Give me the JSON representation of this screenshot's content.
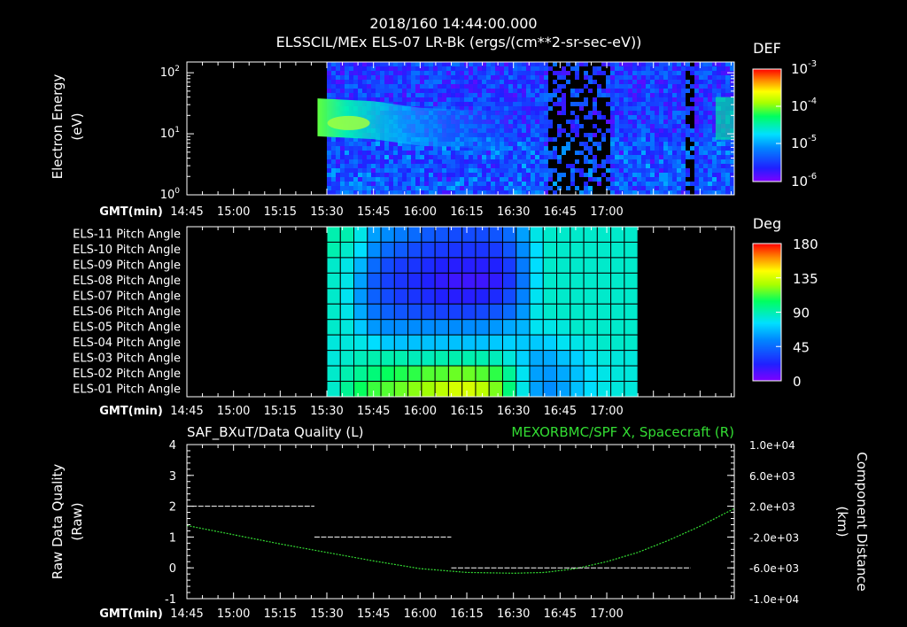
{
  "header": {
    "timestamp": "2018/160 14:44:00.000",
    "title": "ELSSCIL/MEx ELS-07 LR-Bk  (ergs/(cm**2-sr-sec-eV))"
  },
  "time_axis": {
    "label": "GMT(min)",
    "ticks": [
      "14:45",
      "15:00",
      "15:15",
      "15:30",
      "15:45",
      "16:00",
      "16:15",
      "16:30",
      "16:45",
      "17:00"
    ],
    "start_min": 885,
    "end_min": 1061
  },
  "colors": {
    "background": "#000000",
    "axis": "#ffffff",
    "spacecraft_trace": "#33dd33",
    "quality_trace": "#ffffff"
  },
  "chart_data": [
    {
      "type": "heatmap",
      "name": "energy_spectrogram",
      "ylabel": "Electron Energy (eV)",
      "ylabel_lines": [
        "Electron Energy",
        "(eV)"
      ],
      "yscale": "log",
      "ylim": [
        1,
        150
      ],
      "yticks": [
        {
          "base": "10",
          "exp": "0",
          "value": 1
        },
        {
          "base": "10",
          "exp": "1",
          "value": 10
        },
        {
          "base": "10",
          "exp": "2",
          "value": 100
        }
      ],
      "data_start_time": "15:30",
      "colorbar": {
        "title": "DEF",
        "ticks": [
          {
            "base": "10",
            "exp": "-3"
          },
          {
            "base": "10",
            "exp": "-4"
          },
          {
            "base": "10",
            "exp": "-5"
          },
          {
            "base": "10",
            "exp": "-6"
          }
        ]
      }
    },
    {
      "type": "heatmap",
      "name": "pitch_angle",
      "data_start_time": "15:30",
      "data_end_time": "17:10",
      "rows": [
        "ELS-11 Pitch Angle",
        "ELS-10 Pitch Angle",
        "ELS-09 Pitch Angle",
        "ELS-08 Pitch Angle",
        "ELS-07 Pitch Angle",
        "ELS-06 Pitch Angle",
        "ELS-05 Pitch Angle",
        "ELS-04 Pitch Angle",
        "ELS-03 Pitch Angle",
        "ELS-02 Pitch Angle",
        "ELS-01 Pitch Angle"
      ],
      "colorbar": {
        "title": "Deg",
        "range": [
          0,
          180
        ],
        "ticks": [
          "180",
          "135",
          "90",
          "45",
          "0"
        ]
      },
      "columns": 23,
      "values": [
        [
          90,
          90,
          80,
          60,
          55,
          50,
          45,
          40,
          38,
          35,
          35,
          35,
          38,
          45,
          60,
          80,
          85,
          85,
          85,
          85,
          85,
          85,
          85
        ],
        [
          90,
          85,
          75,
          55,
          45,
          40,
          35,
          32,
          30,
          28,
          28,
          28,
          30,
          38,
          55,
          75,
          85,
          85,
          85,
          85,
          85,
          85,
          85
        ],
        [
          85,
          80,
          65,
          45,
          35,
          30,
          28,
          25,
          22,
          20,
          20,
          20,
          22,
          30,
          50,
          75,
          85,
          85,
          85,
          85,
          85,
          85,
          85
        ],
        [
          85,
          80,
          60,
          40,
          32,
          28,
          25,
          22,
          18,
          15,
          15,
          15,
          18,
          28,
          48,
          75,
          85,
          85,
          85,
          85,
          85,
          85,
          85
        ],
        [
          85,
          78,
          58,
          42,
          35,
          30,
          28,
          25,
          22,
          20,
          20,
          22,
          25,
          35,
          52,
          78,
          85,
          85,
          85,
          85,
          85,
          85,
          85
        ],
        [
          85,
          80,
          62,
          48,
          42,
          38,
          36,
          34,
          32,
          32,
          32,
          34,
          38,
          45,
          58,
          80,
          85,
          85,
          85,
          85,
          85,
          85,
          85
        ],
        [
          85,
          82,
          70,
          58,
          55,
          55,
          55,
          55,
          55,
          55,
          55,
          55,
          58,
          62,
          65,
          78,
          80,
          82,
          85,
          85,
          85,
          85,
          85
        ],
        [
          82,
          82,
          80,
          75,
          70,
          68,
          68,
          68,
          68,
          68,
          68,
          68,
          70,
          72,
          70,
          70,
          72,
          78,
          80,
          82,
          85,
          85,
          85
        ],
        [
          82,
          85,
          88,
          90,
          90,
          90,
          88,
          88,
          90,
          90,
          90,
          90,
          88,
          82,
          72,
          62,
          62,
          68,
          72,
          78,
          82,
          82,
          82
        ],
        [
          85,
          90,
          95,
          100,
          105,
          108,
          110,
          115,
          115,
          118,
          118,
          115,
          110,
          95,
          78,
          60,
          58,
          62,
          68,
          75,
          80,
          82,
          82
        ],
        [
          85,
          95,
          105,
          112,
          115,
          118,
          122,
          125,
          130,
          135,
          135,
          130,
          120,
          100,
          80,
          60,
          55,
          60,
          68,
          75,
          80,
          82,
          82
        ]
      ]
    },
    {
      "type": "line",
      "name": "data_quality_and_spacecraft_position",
      "left_title": "SAF_BXuT/Data Quality (L)",
      "right_title": "MEXORBMC/SPF X, Spacecraft (R)",
      "ylabel_left": "Raw Data Quality (Raw)",
      "ylabel_left_lines": [
        "Raw Data Quality",
        "(Raw)"
      ],
      "ylabel_right": "Component Distance (km)",
      "ylabel_right_lines": [
        "Component Distance",
        "(km)"
      ],
      "ylim_left": [
        -1,
        4
      ],
      "yticks_left": [
        "4",
        "3",
        "2",
        "1",
        "0",
        "-1"
      ],
      "ylim_right": [
        -10000,
        10000
      ],
      "yticks_right": [
        "1.0e+04",
        "6.0e+03",
        "2.0e+03",
        "-2.0e+03",
        "-6.0e+03",
        "-1.0e+04"
      ],
      "series": [
        {
          "name": "Data Quality (L)",
          "axis": "left",
          "style": "step",
          "segments": [
            {
              "t0": 886.5,
              "t1": 926,
              "value": 2
            },
            {
              "t0": 926,
              "t1": 970,
              "value": 1
            },
            {
              "t0": 970,
              "t1": 1047,
              "value": 0
            }
          ]
        },
        {
          "name": "SPF X, Spacecraft (R)",
          "axis": "right",
          "style": "dotted",
          "x_min": [
            885,
            900,
            915,
            930,
            945,
            960,
            975,
            990,
            1000,
            1010,
            1020,
            1030,
            1040,
            1050,
            1061
          ],
          "y_km": [
            -500,
            -1700,
            -2900,
            -4000,
            -5100,
            -6100,
            -6600,
            -6700,
            -6600,
            -6100,
            -5200,
            -4000,
            -2400,
            -600,
            1700
          ]
        }
      ]
    }
  ]
}
